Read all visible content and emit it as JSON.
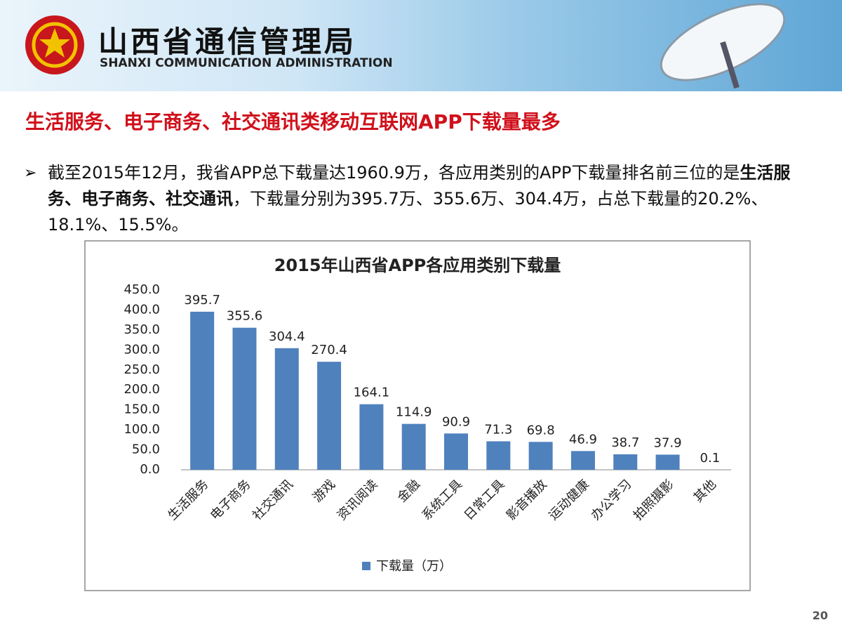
{
  "header": {
    "title": "山西省通信管理局",
    "subtitle": "SHANXI COMMUNICATION ADMINISTRATION"
  },
  "heading": "生活服务、电子商务、社交通讯类移动互联网APP下载量最多",
  "bullet": {
    "text_before": "截至2015年12月，我省APP总下载量达1960.9万，各应用类别的APP下载量排名前三位的是",
    "text_bold": "生活服务、电子商务、社交通讯",
    "text_after": "，下载量分别为395.7万、355.6万、304.4万，占总下载量的20.2%、18.1%、15.5%。"
  },
  "page_number": "20",
  "chart_data": {
    "type": "bar",
    "title": "2015年山西省APP各应用类别下载量",
    "categories": [
      "生活服务",
      "电子商务",
      "社交通讯",
      "游戏",
      "资讯阅读",
      "金融",
      "系统工具",
      "日常工具",
      "影音播放",
      "运动健康",
      "办公学习",
      "拍照摄影",
      "其他"
    ],
    "series": [
      {
        "name": "下载量（万）",
        "color": "#4f81bd",
        "values": [
          395.7,
          355.6,
          304.4,
          270.4,
          164.1,
          114.9,
          90.9,
          71.3,
          69.8,
          46.9,
          38.7,
          37.9,
          0.1
        ]
      }
    ],
    "ylim": [
      0,
      450
    ],
    "yticks": [
      {
        "value": 0,
        "label": "0.0"
      },
      {
        "value": 50,
        "label": "50.0"
      },
      {
        "value": 100,
        "label": "100.0"
      },
      {
        "value": 150,
        "label": "150.0"
      },
      {
        "value": 200,
        "label": "200.0"
      },
      {
        "value": 250,
        "label": "250.0"
      },
      {
        "value": 300,
        "label": "300.0"
      },
      {
        "value": 350,
        "label": "350.0"
      },
      {
        "value": 400,
        "label": "400.0"
      },
      {
        "value": 450,
        "label": "450.0"
      }
    ],
    "grid": false,
    "legend": "bottom"
  }
}
